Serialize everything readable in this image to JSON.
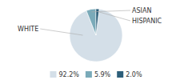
{
  "chart_data": {
    "type": "pie",
    "categories": [
      "WHITE",
      "ASIAN",
      "HISPANIC"
    ],
    "values": [
      92.2,
      5.9,
      2.0
    ],
    "value_labels": [
      "92.2%",
      "5.9%",
      "2.0%"
    ],
    "colors": [
      "#d4dfe8",
      "#7aaab9",
      "#2d5f7a"
    ],
    "legend": "bottom"
  }
}
